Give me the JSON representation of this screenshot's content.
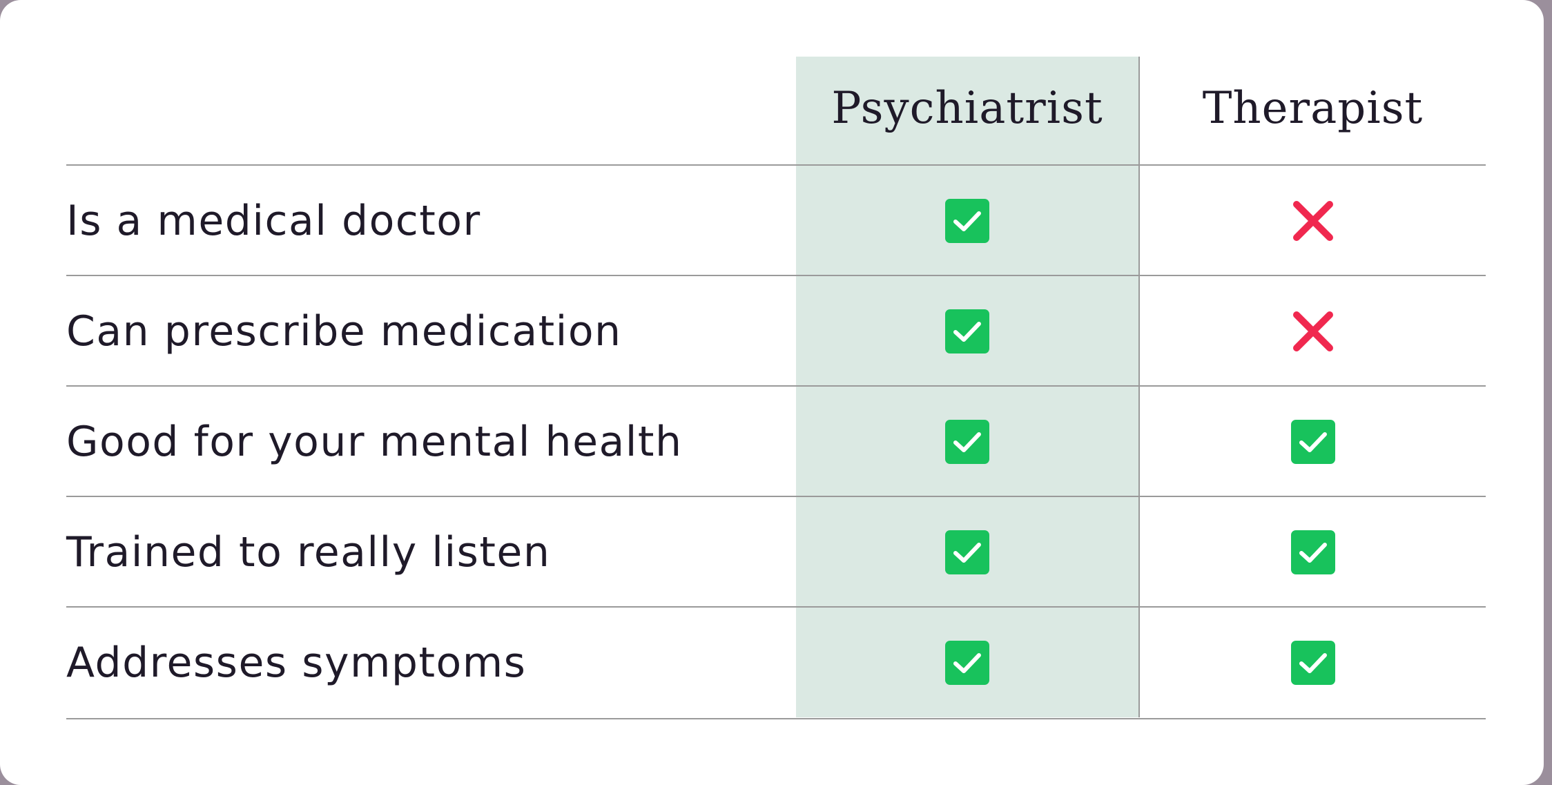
{
  "table": {
    "columns": [
      "Psychiatrist",
      "Therapist"
    ],
    "highlighted_column": "Psychiatrist",
    "rows": [
      {
        "label": "Is a medical doctor",
        "psychiatrist": "check-icon",
        "therapist": "cross-icon"
      },
      {
        "label": "Can prescribe medication",
        "psychiatrist": "check-icon",
        "therapist": "cross-icon"
      },
      {
        "label": "Good for your mental health",
        "psychiatrist": "check-icon",
        "therapist": "check-icon"
      },
      {
        "label": "Trained to really listen",
        "psychiatrist": "check-icon",
        "therapist": "check-icon"
      },
      {
        "label": "Addresses symptoms",
        "psychiatrist": "check-icon",
        "therapist": "check-icon"
      }
    ]
  },
  "colors": {
    "highlight": "#dbe9e3",
    "check": "#18c25c",
    "cross": "#f0284f",
    "text": "#1f1a29",
    "rule": "#9a9a9a"
  }
}
